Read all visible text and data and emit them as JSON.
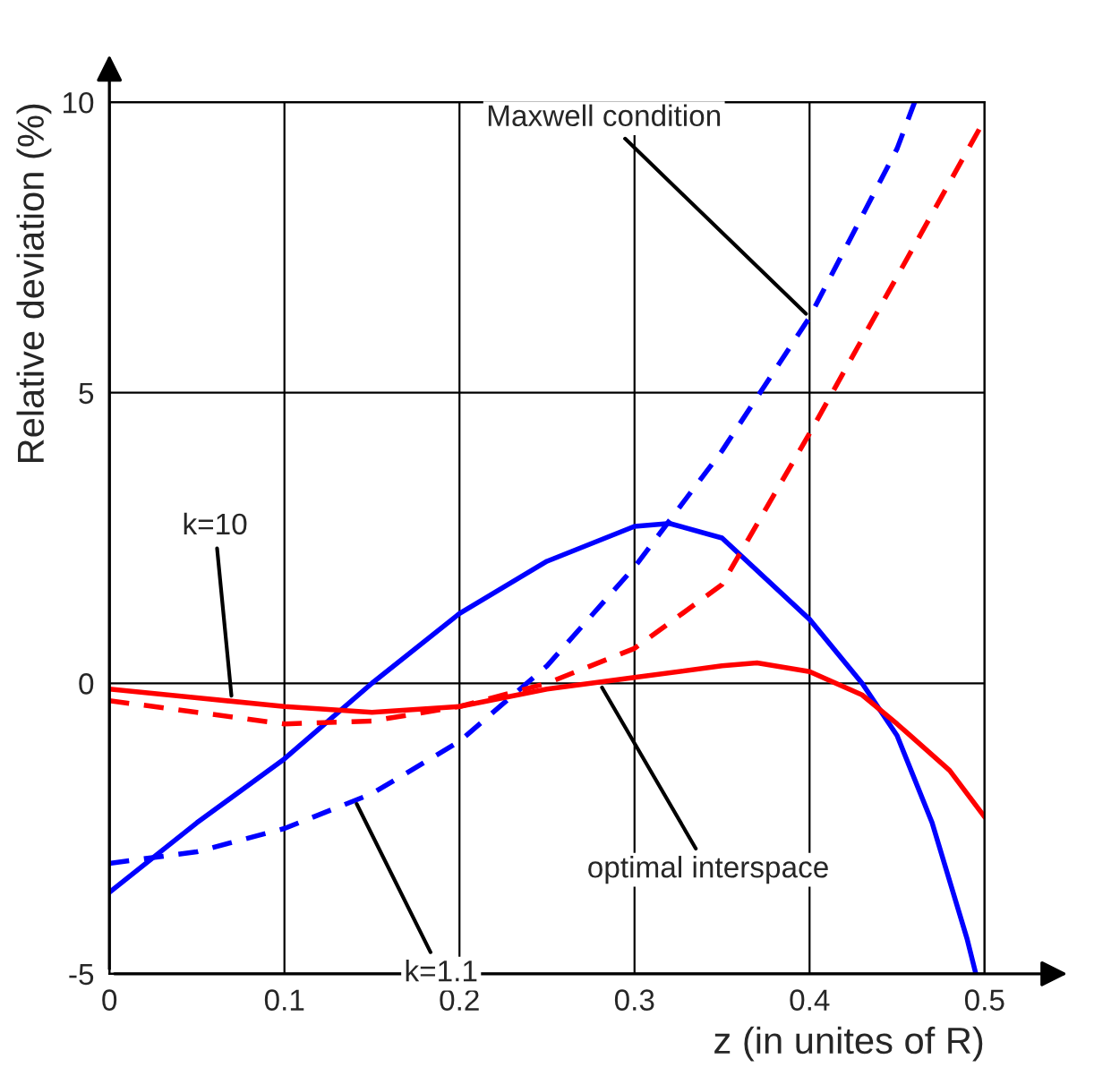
{
  "chart_data": {
    "type": "line",
    "xlabel": "z (in unites of R)",
    "ylabel": "Relative deviation (%)",
    "xlim": [
      0,
      0.5
    ],
    "ylim": [
      -5,
      10
    ],
    "xticks": [
      0,
      0.1,
      0.2,
      0.3,
      0.4,
      0.5
    ],
    "yticks": [
      -5,
      0,
      5,
      10
    ],
    "grid": true,
    "marker": "none",
    "series": [
      {
        "color": "#0000ff",
        "line_style": "solid",
        "x": [
          0,
          0.05,
          0.1,
          0.15,
          0.2,
          0.25,
          0.3,
          0.32,
          0.35,
          0.4,
          0.43,
          0.45,
          0.47,
          0.49,
          0.495
        ],
        "values": [
          -3.6,
          -2.4,
          -1.3,
          0.0,
          1.2,
          2.1,
          2.7,
          2.75,
          2.5,
          1.1,
          0.0,
          -0.9,
          -2.4,
          -4.4,
          -5.0
        ]
      },
      {
        "color": "#0000ff",
        "line_style": "dashed",
        "x": [
          0,
          0.05,
          0.1,
          0.15,
          0.2,
          0.25,
          0.3,
          0.35,
          0.4,
          0.45,
          0.46
        ],
        "values": [
          -3.1,
          -2.9,
          -2.5,
          -1.9,
          -1.0,
          0.3,
          2.0,
          4.0,
          6.3,
          9.2,
          10.0
        ]
      },
      {
        "color": "#ff0000",
        "line_style": "solid",
        "x": [
          0,
          0.05,
          0.1,
          0.15,
          0.2,
          0.25,
          0.3,
          0.35,
          0.37,
          0.4,
          0.43,
          0.45,
          0.48,
          0.5
        ],
        "values": [
          -0.1,
          -0.25,
          -0.4,
          -0.5,
          -0.4,
          -0.1,
          0.1,
          0.3,
          0.35,
          0.2,
          -0.2,
          -0.7,
          -1.5,
          -2.3
        ]
      },
      {
        "color": "#ff0000",
        "line_style": "dashed",
        "x": [
          0,
          0.05,
          0.1,
          0.15,
          0.2,
          0.25,
          0.3,
          0.35,
          0.4,
          0.45,
          0.5
        ],
        "values": [
          -0.3,
          -0.5,
          -0.7,
          -0.65,
          -0.4,
          0.0,
          0.6,
          1.7,
          4.3,
          7.0,
          9.7
        ]
      }
    ],
    "annotations": [
      {
        "text": "Maxwell condition",
        "x": 0.4,
        "y": 6.3
      },
      {
        "text": "k=10",
        "x": 0.07,
        "y": -0.3
      },
      {
        "text": "k=1.1",
        "x": 0.14,
        "y": -2.0
      },
      {
        "text": "optimal interspace",
        "x": 0.28,
        "y": 0.0
      }
    ]
  }
}
